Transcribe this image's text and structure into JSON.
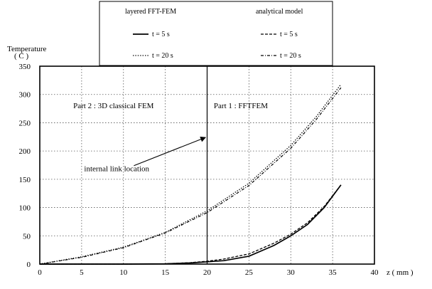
{
  "chart_data": {
    "type": "line",
    "ylabel": "Temperature",
    "ylabel_unit": "( C )",
    "xlabel": "z ( mm )",
    "xlim": [
      0,
      40
    ],
    "ylim": [
      0,
      350
    ],
    "xticks": [
      0,
      5,
      10,
      15,
      20,
      25,
      30,
      35,
      40
    ],
    "yticks": [
      0,
      50,
      100,
      150,
      200,
      250,
      300,
      350
    ],
    "grid": true,
    "legend_position": "top",
    "legend": {
      "headers": [
        "layered FFT-FEM",
        "analytical model"
      ],
      "entries": [
        {
          "label": "t = 5 s",
          "model": "layered FFT-FEM",
          "style": "solid"
        },
        {
          "label": "t = 5 s",
          "model": "analytical model",
          "style": "dashed"
        },
        {
          "label": "t = 20 s",
          "model": "layered FFT-FEM",
          "style": "dotted"
        },
        {
          "label": "t = 20 s",
          "model": "analytical model",
          "style": "dash-dot"
        }
      ]
    },
    "vline": {
      "x": 20
    },
    "annotations": [
      {
        "text": "Part 2 : 3D classical FEM",
        "x": 4,
        "y": 276
      },
      {
        "text": "Part 1 : FFTFEM",
        "x": 20.8,
        "y": 276
      },
      {
        "text": "internal link location",
        "x": 5.3,
        "y": 164,
        "arrow_to": [
          19.8,
          224
        ]
      }
    ],
    "series": [
      {
        "name": "layered FFT-FEM t = 5 s",
        "style": "solid",
        "x": [
          0,
          10,
          15,
          18,
          20,
          22,
          25,
          28,
          30,
          32,
          34,
          36
        ],
        "y": [
          0,
          0,
          0.5,
          2,
          4,
          6,
          14,
          33,
          50,
          70,
          100,
          140
        ]
      },
      {
        "name": "analytical model t = 5 s",
        "style": "dashed",
        "x": [
          0,
          10,
          15,
          18,
          20,
          22,
          25,
          28,
          30,
          32,
          34,
          36
        ],
        "y": [
          0,
          0,
          0.5,
          2.5,
          5,
          9,
          18,
          37,
          53,
          73,
          102,
          140
        ]
      },
      {
        "name": "layered FFT-FEM t = 20 s",
        "style": "dotted",
        "x": [
          0,
          5,
          10,
          15,
          20,
          25,
          30,
          33,
          36
        ],
        "y": [
          0,
          13,
          30,
          56,
          94,
          143,
          210,
          260,
          318
        ]
      },
      {
        "name": "analytical model t = 20 s",
        "style": "dash-dot",
        "x": [
          0,
          5,
          10,
          15,
          20,
          25,
          30,
          33,
          36
        ],
        "y": [
          0,
          12,
          29,
          55,
          91,
          139,
          205,
          255,
          312
        ]
      }
    ]
  }
}
